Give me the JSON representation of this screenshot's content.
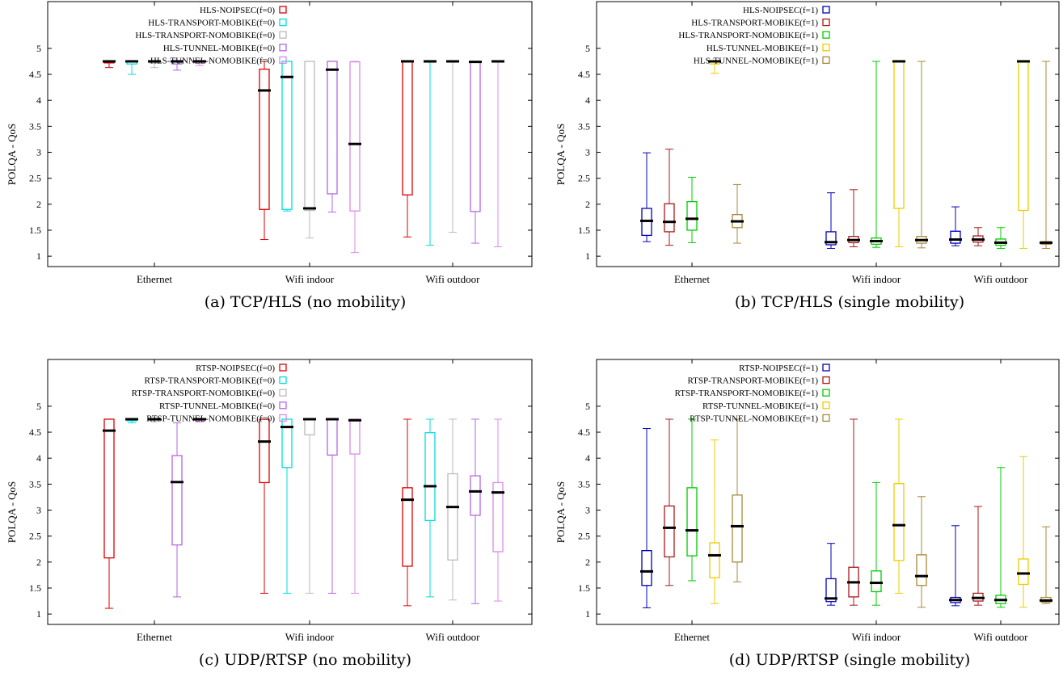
{
  "chart_data": [
    {
      "type": "boxplot",
      "caption": "(a) TCP/HLS (no mobility)",
      "ylabel": "POLQA - QoS",
      "xlabel": "",
      "ylim": [
        0.8,
        5.9
      ],
      "yticks": [
        "1",
        "1.5",
        "2",
        "2.5",
        "3",
        "3.5",
        "4",
        "4.5",
        "5"
      ],
      "categories": [
        "Ethernet",
        "Wifi indoor",
        "Wifi outdoor"
      ],
      "grid": false,
      "legend_position": "top-right",
      "series": [
        {
          "name": "HLS-NOIPSEC(f=0)",
          "color": "#dd0000",
          "boxes": [
            {
              "min": 4.63,
              "q1": 4.72,
              "median": 4.75,
              "q3": 4.75,
              "max": 4.75
            },
            {
              "min": 1.32,
              "q1": 1.9,
              "median": 4.19,
              "q3": 4.6,
              "max": 4.75
            },
            {
              "min": 1.37,
              "q1": 2.18,
              "median": 4.75,
              "q3": 4.75,
              "max": 4.75
            }
          ]
        },
        {
          "name": "HLS-TRANSPORT-MOBIKE(f=0)",
          "color": "#00dddd",
          "boxes": [
            {
              "min": 4.5,
              "q1": 4.7,
              "median": 4.75,
              "q3": 4.75,
              "max": 4.75
            },
            {
              "min": 1.87,
              "q1": 1.9,
              "median": 4.45,
              "q3": 4.75,
              "max": 4.75
            },
            {
              "min": 1.21,
              "q1": 4.75,
              "median": 4.75,
              "q3": 4.75,
              "max": 4.75
            }
          ]
        },
        {
          "name": "HLS-TRANSPORT-NOMOBIKE(f=0)",
          "color": "#bbbbbb",
          "boxes": [
            {
              "min": 4.63,
              "q1": 4.72,
              "median": 4.75,
              "q3": 4.75,
              "max": 4.75
            },
            {
              "min": 1.35,
              "q1": 1.88,
              "median": 1.92,
              "q3": 4.75,
              "max": 4.75
            },
            {
              "min": 1.46,
              "q1": 4.75,
              "median": 4.75,
              "q3": 4.75,
              "max": 4.75
            }
          ]
        },
        {
          "name": "HLS-TUNNEL-MOBIKE(f=0)",
          "color": "#b366e6",
          "boxes": [
            {
              "min": 4.58,
              "q1": 4.7,
              "median": 4.75,
              "q3": 4.75,
              "max": 4.75
            },
            {
              "min": 1.85,
              "q1": 2.2,
              "median": 4.59,
              "q3": 4.75,
              "max": 4.75
            },
            {
              "min": 1.25,
              "q1": 1.86,
              "median": 4.74,
              "q3": 4.75,
              "max": 4.75
            }
          ]
        },
        {
          "name": "HLS-TUNNEL-NOMOBIKE(f=0)",
          "color": "#dd88e8",
          "boxes": [
            {
              "min": 4.67,
              "q1": 4.72,
              "median": 4.75,
              "q3": 4.75,
              "max": 4.75
            },
            {
              "min": 1.07,
              "q1": 1.87,
              "median": 3.16,
              "q3": 4.74,
              "max": 4.75
            },
            {
              "min": 1.18,
              "q1": 4.75,
              "median": 4.75,
              "q3": 4.75,
              "max": 4.75
            }
          ]
        }
      ]
    },
    {
      "type": "boxplot",
      "caption": "(b) TCP/HLS (single mobility)",
      "ylabel": "POLQA - QoS",
      "xlabel": "",
      "ylim": [
        0.8,
        5.9
      ],
      "yticks": [
        "1",
        "1.5",
        "2",
        "2.5",
        "3",
        "3.5",
        "4",
        "4.5",
        "5"
      ],
      "categories": [
        "Ethernet",
        "Wifi indoor",
        "Wifi outdoor"
      ],
      "grid": false,
      "legend_position": "top-right",
      "series": [
        {
          "name": "HLS-NOIPSEC(f=1)",
          "color": "#0000bb",
          "boxes": [
            {
              "min": 1.28,
              "q1": 1.4,
              "median": 1.68,
              "q3": 1.92,
              "max": 2.99
            },
            {
              "min": 1.15,
              "q1": 1.22,
              "median": 1.27,
              "q3": 1.47,
              "max": 2.22
            },
            {
              "min": 1.2,
              "q1": 1.25,
              "median": 1.32,
              "q3": 1.48,
              "max": 1.95
            }
          ]
        },
        {
          "name": "HLS-TRANSPORT-MOBIKE(f=1)",
          "color": "#aa1a1a",
          "boxes": [
            {
              "min": 1.21,
              "q1": 1.47,
              "median": 1.66,
              "q3": 2.01,
              "max": 3.06
            },
            {
              "min": 1.18,
              "q1": 1.26,
              "median": 1.31,
              "q3": 1.38,
              "max": 2.28
            },
            {
              "min": 1.2,
              "q1": 1.27,
              "median": 1.32,
              "q3": 1.39,
              "max": 1.55
            }
          ]
        },
        {
          "name": "HLS-TRANSPORT-NOMOBIKE(f=1)",
          "color": "#00cc00",
          "boxes": [
            {
              "min": 1.26,
              "q1": 1.5,
              "median": 1.72,
              "q3": 2.05,
              "max": 2.52
            },
            {
              "min": 1.17,
              "q1": 1.23,
              "median": 1.29,
              "q3": 1.35,
              "max": 4.75
            },
            {
              "min": 1.15,
              "q1": 1.21,
              "median": 1.26,
              "q3": 1.33,
              "max": 1.55
            }
          ]
        },
        {
          "name": "HLS-TUNNEL-MOBIKE(f=1)",
          "color": "#eecc00",
          "boxes": [
            {
              "min": 4.52,
              "q1": 4.7,
              "median": 4.75,
              "q3": 4.75,
              "max": 4.75
            },
            {
              "min": 1.18,
              "q1": 1.92,
              "median": 4.75,
              "q3": 4.75,
              "max": 4.75
            },
            {
              "min": 1.15,
              "q1": 1.88,
              "median": 4.75,
              "q3": 4.75,
              "max": 4.75
            }
          ]
        },
        {
          "name": "HLS-TUNNEL-NOMOBIKE(f=1)",
          "color": "#a68a3a",
          "boxes": [
            {
              "min": 1.25,
              "q1": 1.55,
              "median": 1.67,
              "q3": 1.8,
              "max": 2.38
            },
            {
              "min": 1.16,
              "q1": 1.25,
              "median": 1.31,
              "q3": 1.38,
              "max": 4.75
            },
            {
              "min": 1.15,
              "q1": 1.23,
              "median": 1.26,
              "q3": 1.28,
              "max": 4.75
            }
          ]
        }
      ]
    },
    {
      "type": "boxplot",
      "caption": "(c) UDP/RTSP (no mobility)",
      "ylabel": "POLQA - QoS",
      "xlabel": "",
      "ylim": [
        0.8,
        5.9
      ],
      "yticks": [
        "1",
        "1.5",
        "2",
        "2.5",
        "3",
        "3.5",
        "4",
        "4.5",
        "5"
      ],
      "categories": [
        "Ethernet",
        "Wifi indoor",
        "Wifi outdoor"
      ],
      "grid": false,
      "legend_position": "top-right",
      "series": [
        {
          "name": "RTSP-NOIPSEC(f=0)",
          "color": "#dd0000",
          "boxes": [
            {
              "min": 1.11,
              "q1": 2.08,
              "median": 4.53,
              "q3": 4.75,
              "max": 4.75
            },
            {
              "min": 1.4,
              "q1": 3.53,
              "median": 4.32,
              "q3": 4.75,
              "max": 4.75
            },
            {
              "min": 1.16,
              "q1": 1.92,
              "median": 3.2,
              "q3": 3.43,
              "max": 4.75
            }
          ]
        },
        {
          "name": "RTSP-TRANSPORT-MOBIKE(f=0)",
          "color": "#00dddd",
          "boxes": [
            {
              "min": 4.68,
              "q1": 4.72,
              "median": 4.75,
              "q3": 4.75,
              "max": 4.75
            },
            {
              "min": 1.4,
              "q1": 3.82,
              "median": 4.6,
              "q3": 4.75,
              "max": 4.75
            },
            {
              "min": 1.33,
              "q1": 2.8,
              "median": 3.46,
              "q3": 4.49,
              "max": 4.75
            }
          ]
        },
        {
          "name": "RTSP-TRANSPORT-NOMOBIKE(f=0)",
          "color": "#bbbbbb",
          "boxes": [
            {
              "min": 4.7,
              "q1": 4.73,
              "median": 4.75,
              "q3": 4.75,
              "max": 4.75
            },
            {
              "min": 1.4,
              "q1": 4.45,
              "median": 4.75,
              "q3": 4.75,
              "max": 4.75
            },
            {
              "min": 1.27,
              "q1": 2.04,
              "median": 3.06,
              "q3": 3.7,
              "max": 4.75
            }
          ]
        },
        {
          "name": "RTSP-TUNNEL-MOBIKE(f=0)",
          "color": "#b366e6",
          "boxes": [
            {
              "min": 1.33,
              "q1": 2.33,
              "median": 3.54,
              "q3": 4.05,
              "max": 4.68
            },
            {
              "min": 1.4,
              "q1": 4.06,
              "median": 4.75,
              "q3": 4.75,
              "max": 4.75
            },
            {
              "min": 1.2,
              "q1": 2.9,
              "median": 3.36,
              "q3": 3.66,
              "max": 4.75
            }
          ]
        },
        {
          "name": "RTSP-TUNNEL-NOMOBIKE(f=0)",
          "color": "#dd88e8",
          "boxes": [
            {
              "min": 4.7,
              "q1": 4.73,
              "median": 4.75,
              "q3": 4.75,
              "max": 4.75
            },
            {
              "min": 1.4,
              "q1": 4.08,
              "median": 4.73,
              "q3": 4.75,
              "max": 4.75
            },
            {
              "min": 1.25,
              "q1": 2.2,
              "median": 3.34,
              "q3": 3.53,
              "max": 4.75
            }
          ]
        }
      ]
    },
    {
      "type": "boxplot",
      "caption": "(d) UDP/RTSP (single mobility)",
      "ylabel": "POLQA - QoS",
      "xlabel": "",
      "ylim": [
        0.8,
        5.9
      ],
      "yticks": [
        "1",
        "1.5",
        "2",
        "2.5",
        "3",
        "3.5",
        "4",
        "4.5",
        "5"
      ],
      "categories": [
        "Ethernet",
        "Wifi indoor",
        "Wifi outdoor"
      ],
      "grid": false,
      "legend_position": "top-right",
      "series": [
        {
          "name": "RTSP-NOIPSEC(f=1)",
          "color": "#0000bb",
          "boxes": [
            {
              "min": 1.12,
              "q1": 1.55,
              "median": 1.82,
              "q3": 2.22,
              "max": 4.57
            },
            {
              "min": 1.17,
              "q1": 1.24,
              "median": 1.3,
              "q3": 1.68,
              "max": 2.36
            },
            {
              "min": 1.16,
              "q1": 1.22,
              "median": 1.27,
              "q3": 1.32,
              "max": 2.7
            }
          ]
        },
        {
          "name": "RTSP-TRANSPORT-MOBIKE(f=1)",
          "color": "#aa1a1a",
          "boxes": [
            {
              "min": 1.55,
              "q1": 2.1,
              "median": 2.66,
              "q3": 3.08,
              "max": 4.75
            },
            {
              "min": 1.17,
              "q1": 1.33,
              "median": 1.61,
              "q3": 1.9,
              "max": 4.75
            },
            {
              "min": 1.17,
              "q1": 1.25,
              "median": 1.31,
              "q3": 1.4,
              "max": 3.07
            }
          ]
        },
        {
          "name": "RTSP-TRANSPORT-NOMOBIKE(f=1)",
          "color": "#00cc00",
          "boxes": [
            {
              "min": 1.64,
              "q1": 2.12,
              "median": 2.61,
              "q3": 3.43,
              "max": 4.75
            },
            {
              "min": 1.17,
              "q1": 1.43,
              "median": 1.6,
              "q3": 1.83,
              "max": 3.53
            },
            {
              "min": 1.13,
              "q1": 1.2,
              "median": 1.27,
              "q3": 1.36,
              "max": 3.82
            }
          ]
        },
        {
          "name": "RTSP-TUNNEL-MOBIKE(f=1)",
          "color": "#eecc00",
          "boxes": [
            {
              "min": 1.2,
              "q1": 1.7,
              "median": 2.13,
              "q3": 2.37,
              "max": 4.35
            },
            {
              "min": 1.4,
              "q1": 2.03,
              "median": 2.71,
              "q3": 3.51,
              "max": 4.75
            },
            {
              "min": 1.13,
              "q1": 1.57,
              "median": 1.78,
              "q3": 2.06,
              "max": 4.03
            }
          ]
        },
        {
          "name": "RTSP-TUNNEL-NOMOBIKE(f=1)",
          "color": "#a68a3a",
          "boxes": [
            {
              "min": 1.62,
              "q1": 2.0,
              "median": 2.69,
              "q3": 3.29,
              "max": 4.75
            },
            {
              "min": 1.13,
              "q1": 1.55,
              "median": 1.73,
              "q3": 2.14,
              "max": 3.26
            },
            {
              "min": 1.2,
              "q1": 1.23,
              "median": 1.26,
              "q3": 1.32,
              "max": 2.68
            }
          ]
        }
      ]
    }
  ]
}
